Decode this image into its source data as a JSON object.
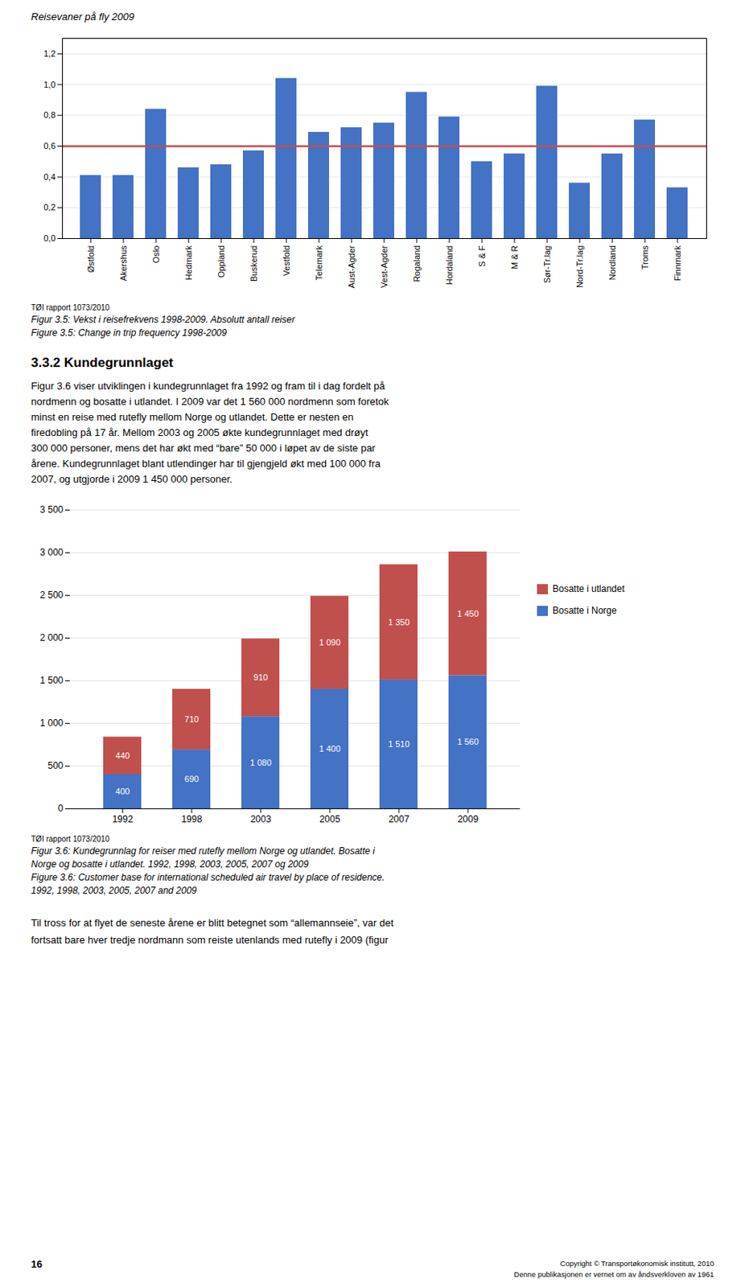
{
  "title": "Reisevaner på fly 2009",
  "chart_data": [
    {
      "type": "bar",
      "title": "Figur 3.5: Vekst i reisefrekvens 1998-2009. Absolutt antall reiser",
      "subtitle": "Figure 3.5: Change in trip frequency 1998-2009",
      "annotations": [
        "TØI rapport 1073/2010"
      ],
      "categories": [
        "Østfold",
        "Akershus",
        "Oslo",
        "Hedmark",
        "Oppland",
        "Buskerud",
        "Vestfold",
        "Telemark",
        "Aust-Agder",
        "Vest-Agder",
        "Rogaland",
        "Hordaland",
        "S & F",
        "M & R",
        "Sør-Tr.lag",
        "Nord-Tr.lag",
        "Nordland",
        "Troms",
        "Finnmark"
      ],
      "values": [
        0.41,
        0.41,
        0.84,
        0.46,
        0.48,
        0.57,
        1.04,
        0.69,
        0.72,
        0.75,
        0.95,
        0.79,
        0.5,
        0.55,
        0.99,
        0.36,
        0.55,
        0.77,
        0.33
      ],
      "color": "#4472C4",
      "reference_lines": [
        {
          "y": 0.6,
          "color": "#C0504D"
        }
      ],
      "ylim": [
        0,
        1.3
      ],
      "yticks": [
        {
          "value": 0.0,
          "label": "0,0"
        },
        {
          "value": 0.2,
          "label": "0,2"
        },
        {
          "value": 0.4,
          "label": "0,4"
        },
        {
          "value": 0.6,
          "label": "0,6"
        },
        {
          "value": 0.8,
          "label": "0,8"
        },
        {
          "value": 1.0,
          "label": "1,0"
        },
        {
          "value": 1.2,
          "label": "1,2"
        }
      ],
      "grid": true
    },
    {
      "type": "bar",
      "title": [
        "Figur 3.6: Kundegrunnlag for reiser med rutefly mellom Norge og utlandet. Bosatte i",
        "Norge og bosatte i utlandet. 1992, 1998, 2003, 2005, 2007 og 2009"
      ],
      "subtitle": [
        "Figure 3.6: Customer base for international scheduled air travel by place of residence.",
        "1992, 1998, 2003, 2005, 2007 and 2009"
      ],
      "annotations": [
        "TØI rapport 1073/2010"
      ],
      "categories": [
        "1992",
        "1998",
        "2003",
        "2005",
        "2007",
        "2009"
      ],
      "series": [
        {
          "name": "Bosatte i Norge",
          "color": "#4472C4",
          "values": [
            400,
            690,
            1080,
            1400,
            1510,
            1560
          ],
          "value_labels": [
            "400",
            "690",
            "1 080",
            "1 400",
            "1 510",
            "1 560"
          ]
        },
        {
          "name": "Bosatte i utlandet",
          "color": "#C0504D",
          "values": [
            440,
            710,
            910,
            1090,
            1350,
            1450
          ],
          "value_labels": [
            "440",
            "710",
            "910",
            "1 090",
            "1 350",
            "1 450"
          ]
        }
      ],
      "stacked": true,
      "data_labels": true,
      "legend": "right",
      "ylim": [
        0,
        3500
      ],
      "yticks": [
        0,
        500,
        {
          "value": 1000,
          "label": "1 000"
        },
        {
          "value": 1500,
          "label": "1 500"
        },
        {
          "value": 2000,
          "label": "2 000"
        },
        {
          "value": 2500,
          "label": "2 500"
        },
        {
          "value": 3000,
          "label": "3 000"
        },
        {
          "value": 3500,
          "label": "3 500"
        }
      ],
      "grid": true
    }
  ],
  "section_title": "3.3.2 Kundegrunnlaget",
  "paragraph": [
    "Figur 3.6 viser utviklingen i kundegrunnlaget fra 1992 og fram til i dag fordelt på",
    "nordmenn og bosatte i utlandet. I 2009 var det 1 560 000 nordmenn som foretok",
    "minst en reise med rutefly mellom Norge og utlandet. Dette er nesten en",
    "firedobling på 17 år. Mellom 2003 og 2005 økte kundegrunnlaget med drøyt",
    "300 000 personer, mens det har økt med “bare” 50 000 i løpet av de siste par",
    "årene. Kundegrunnlaget blant utlendinger har til gjengjeld økt med 100 000 fra",
    "2007, og utgjorde i 2009 1 450 000 personer."
  ],
  "footer_paragraph": [
    "Til tross for at flyet de seneste årene er blitt betegnet som “allemannseie”, var det",
    "fortsatt bare hver tredje nordmann som reiste utenlands med rutefly i 2009 (figur"
  ],
  "page_number": "16",
  "copyright": [
    "Copyright © Transportøkonomisk institutt, 2010",
    "Denne publikasjonen er vernet om av åndsverkloven av 1961"
  ]
}
